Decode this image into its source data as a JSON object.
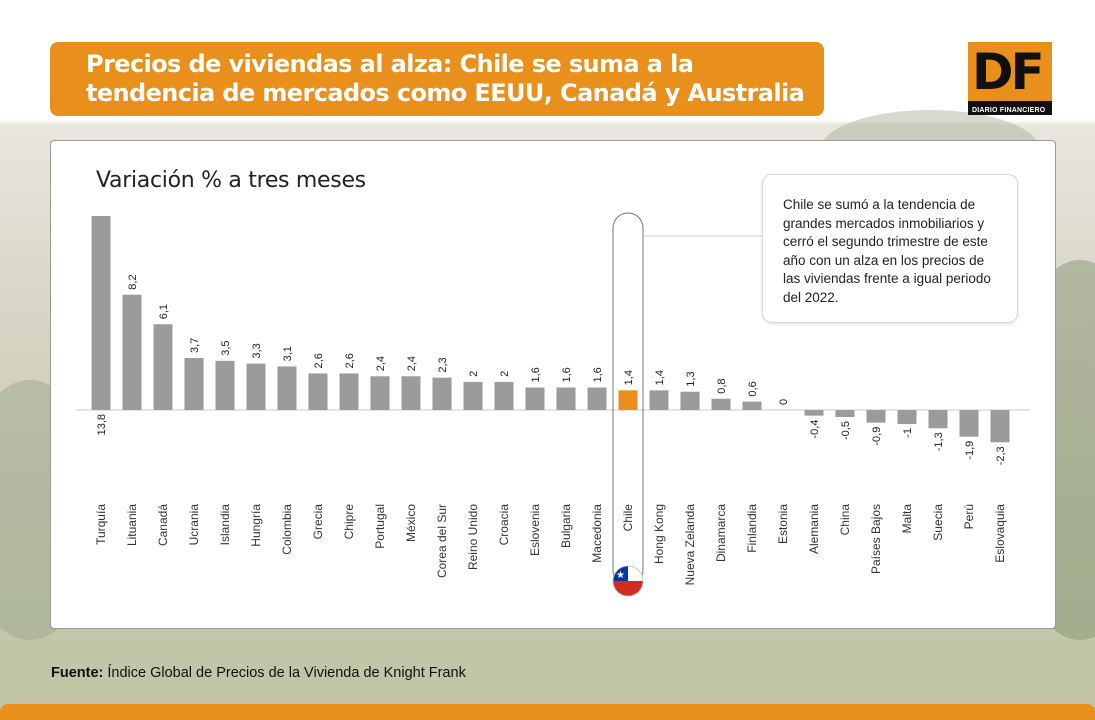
{
  "title": {
    "line1": "Precios de viviendas al alza: Chile se suma a la",
    "line2": "tendencia de mercados como EEUU, Canadá y Australia"
  },
  "logo": {
    "letters": "DF",
    "sub": "DIARIO FINANCIERO"
  },
  "note": "Chile se sumó a la tendencia de grandes mercados inmobiliarios y cerró el segundo trimestre de este año con un alza en los precios de las viviendas frente a igual periodo del 2022.",
  "source": {
    "label": "Fuente:",
    "text": "Índice Global de Precios de la Vivienda de Knight Frank"
  },
  "colors": {
    "orange": "#e98f1c",
    "bar": "#9b9b9b",
    "highlight": "#e98f1c"
  },
  "chart_data": {
    "type": "bar",
    "title": "Variación % a tres meses",
    "highlight": "Chile",
    "categories": [
      "Turquía",
      "Lituania",
      "Canadá",
      "Ucrania",
      "Islandia",
      "Hungría",
      "Colombia",
      "Grecia",
      "Chipre",
      "Portugal",
      "México",
      "Corea del Sur",
      "Reino Unido",
      "Croacia",
      "Eslovenia",
      "Bulgaria",
      "Macedonia",
      "Chile",
      "Hong Kong",
      "Nueva Zelanda",
      "Dinamarca",
      "Finlandia",
      "Estonia",
      "Alemania",
      "China",
      "Países Bajos",
      "Malta",
      "Suecia",
      "Perú",
      "Eslovaquia"
    ],
    "values": [
      13.8,
      8.2,
      6.1,
      3.7,
      3.5,
      3.3,
      3.1,
      2.6,
      2.6,
      2.4,
      2.4,
      2.3,
      2,
      2,
      1.6,
      1.6,
      1.6,
      1.4,
      1.4,
      1.3,
      0.8,
      0.6,
      0,
      -0.4,
      -0.5,
      -0.9,
      -1,
      -1.3,
      -1.9,
      -2.3
    ],
    "labels": [
      "13,8",
      "8,2",
      "6,1",
      "3,7",
      "3,5",
      "3,3",
      "3,1",
      "2,6",
      "2,6",
      "2,4",
      "2,4",
      "2,3",
      "2",
      "2",
      "1,6",
      "1,6",
      "1,6",
      "1,4",
      "1,4",
      "1,3",
      "0,8",
      "0,6",
      "0",
      "-0,4",
      "-0,5",
      "-0,9",
      "-1",
      "-1,3",
      "-1,9",
      "-2,3"
    ]
  }
}
